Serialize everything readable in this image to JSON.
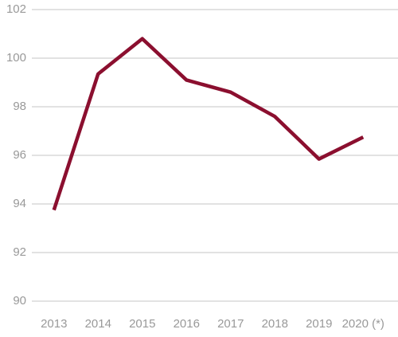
{
  "chart_data": {
    "type": "line",
    "categories": [
      "2013",
      "2014",
      "2015",
      "2016",
      "2017",
      "2018",
      "2019",
      "2020 (*)"
    ],
    "values": [
      93.75,
      99.35,
      100.8,
      99.1,
      98.6,
      97.6,
      95.85,
      96.75
    ],
    "color": "#8b0f2f",
    "ylim": [
      90,
      102
    ],
    "yticks": [
      90,
      92,
      94,
      96,
      98,
      100,
      102
    ],
    "grid": true
  }
}
